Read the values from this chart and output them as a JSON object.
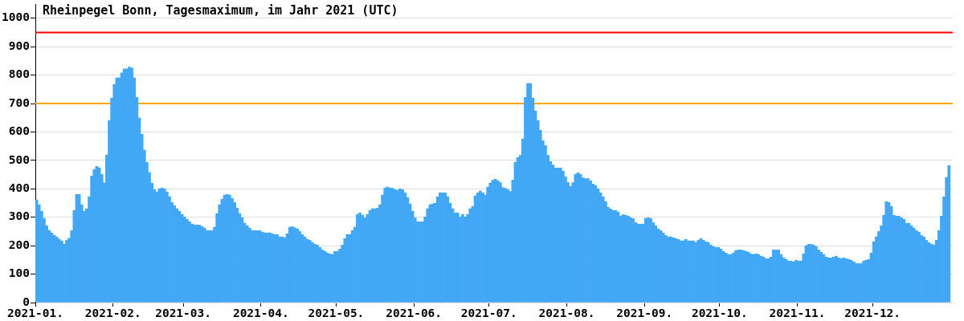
{
  "chart_data": {
    "type": "bar",
    "title": "Rheinpegel Bonn, Tagesmaximum, im Jahr 2021 (UTC)",
    "x": [
      "2021-01-01",
      "2021-01-02",
      "2021-01-03",
      "2021-01-04",
      "2021-01-05",
      "2021-01-06",
      "2021-01-07",
      "2021-01-08",
      "2021-01-09",
      "2021-01-10",
      "2021-01-11",
      "2021-01-12",
      "2021-01-13",
      "2021-01-14",
      "2021-01-15",
      "2021-01-16",
      "2021-01-17",
      "2021-01-18",
      "2021-01-19",
      "2021-01-20",
      "2021-01-21",
      "2021-01-22",
      "2021-01-23",
      "2021-01-24",
      "2021-01-25",
      "2021-01-26",
      "2021-01-27",
      "2021-01-28",
      "2021-01-29",
      "2021-01-30",
      "2021-01-31",
      "2021-02-01",
      "2021-02-02",
      "2021-02-03",
      "2021-02-04",
      "2021-02-05",
      "2021-02-06",
      "2021-02-07",
      "2021-02-08",
      "2021-02-09",
      "2021-02-10",
      "2021-02-11",
      "2021-02-12",
      "2021-02-13",
      "2021-02-14",
      "2021-02-15",
      "2021-02-16",
      "2021-02-17",
      "2021-02-18",
      "2021-02-19",
      "2021-02-20",
      "2021-02-21",
      "2021-02-22",
      "2021-02-23",
      "2021-02-24",
      "2021-02-25",
      "2021-02-26",
      "2021-02-27",
      "2021-02-28",
      "2021-03-01",
      "2021-03-02",
      "2021-03-03",
      "2021-03-04",
      "2021-03-05",
      "2021-03-06",
      "2021-03-07",
      "2021-03-08",
      "2021-03-09",
      "2021-03-10",
      "2021-03-11",
      "2021-03-12",
      "2021-03-13",
      "2021-03-14",
      "2021-03-15",
      "2021-03-16",
      "2021-03-17",
      "2021-03-18",
      "2021-03-19",
      "2021-03-20",
      "2021-03-21",
      "2021-03-22",
      "2021-03-23",
      "2021-03-24",
      "2021-03-25",
      "2021-03-26",
      "2021-03-27",
      "2021-03-28",
      "2021-03-29",
      "2021-03-30",
      "2021-03-31",
      "2021-04-01",
      "2021-04-02",
      "2021-04-03",
      "2021-04-04",
      "2021-04-05",
      "2021-04-06",
      "2021-04-07",
      "2021-04-08",
      "2021-04-09",
      "2021-04-10",
      "2021-04-11",
      "2021-04-12",
      "2021-04-13",
      "2021-04-14",
      "2021-04-15",
      "2021-04-16",
      "2021-04-17",
      "2021-04-18",
      "2021-04-19",
      "2021-04-20",
      "2021-04-21",
      "2021-04-22",
      "2021-04-23",
      "2021-04-24",
      "2021-04-25",
      "2021-04-26",
      "2021-04-27",
      "2021-04-28",
      "2021-04-29",
      "2021-04-30",
      "2021-05-01",
      "2021-05-02",
      "2021-05-03",
      "2021-05-04",
      "2021-05-05",
      "2021-05-06",
      "2021-05-07",
      "2021-05-08",
      "2021-05-09",
      "2021-05-10",
      "2021-05-11",
      "2021-05-12",
      "2021-05-13",
      "2021-05-14",
      "2021-05-15",
      "2021-05-16",
      "2021-05-17",
      "2021-05-18",
      "2021-05-19",
      "2021-05-20",
      "2021-05-21",
      "2021-05-22",
      "2021-05-23",
      "2021-05-24",
      "2021-05-25",
      "2021-05-26",
      "2021-05-27",
      "2021-05-28",
      "2021-05-29",
      "2021-05-30",
      "2021-05-31",
      "2021-06-01",
      "2021-06-02",
      "2021-06-03",
      "2021-06-04",
      "2021-06-05",
      "2021-06-06",
      "2021-06-07",
      "2021-06-08",
      "2021-06-09",
      "2021-06-10",
      "2021-06-11",
      "2021-06-12",
      "2021-06-13",
      "2021-06-14",
      "2021-06-15",
      "2021-06-16",
      "2021-06-17",
      "2021-06-18",
      "2021-06-19",
      "2021-06-20",
      "2021-06-21",
      "2021-06-22",
      "2021-06-23",
      "2021-06-24",
      "2021-06-25",
      "2021-06-26",
      "2021-06-27",
      "2021-06-28",
      "2021-06-29",
      "2021-06-30",
      "2021-07-01",
      "2021-07-02",
      "2021-07-03",
      "2021-07-04",
      "2021-07-05",
      "2021-07-06",
      "2021-07-07",
      "2021-07-08",
      "2021-07-09",
      "2021-07-10",
      "2021-07-11",
      "2021-07-12",
      "2021-07-13",
      "2021-07-14",
      "2021-07-15",
      "2021-07-16",
      "2021-07-17",
      "2021-07-18",
      "2021-07-19",
      "2021-07-20",
      "2021-07-21",
      "2021-07-22",
      "2021-07-23",
      "2021-07-24",
      "2021-07-25",
      "2021-07-26",
      "2021-07-27",
      "2021-07-28",
      "2021-07-29",
      "2021-07-30",
      "2021-07-31",
      "2021-08-01",
      "2021-08-02",
      "2021-08-03",
      "2021-08-04",
      "2021-08-05",
      "2021-08-06",
      "2021-08-07",
      "2021-08-08",
      "2021-08-09",
      "2021-08-10",
      "2021-08-11",
      "2021-08-12",
      "2021-08-13",
      "2021-08-14",
      "2021-08-15",
      "2021-08-16",
      "2021-08-17",
      "2021-08-18",
      "2021-08-19",
      "2021-08-20",
      "2021-08-21",
      "2021-08-22",
      "2021-08-23",
      "2021-08-24",
      "2021-08-25",
      "2021-08-26",
      "2021-08-27",
      "2021-08-28",
      "2021-08-29",
      "2021-08-30",
      "2021-08-31",
      "2021-09-01",
      "2021-09-02",
      "2021-09-03",
      "2021-09-04",
      "2021-09-05",
      "2021-09-06",
      "2021-09-07",
      "2021-09-08",
      "2021-09-09",
      "2021-09-10",
      "2021-09-11",
      "2021-09-12",
      "2021-09-13",
      "2021-09-14",
      "2021-09-15",
      "2021-09-16",
      "2021-09-17",
      "2021-09-18",
      "2021-09-19",
      "2021-09-20",
      "2021-09-21",
      "2021-09-22",
      "2021-09-23",
      "2021-09-24",
      "2021-09-25",
      "2021-09-26",
      "2021-09-27",
      "2021-09-28",
      "2021-09-29",
      "2021-09-30",
      "2021-10-01",
      "2021-10-02",
      "2021-10-03",
      "2021-10-04",
      "2021-10-05",
      "2021-10-06",
      "2021-10-07",
      "2021-10-08",
      "2021-10-09",
      "2021-10-10",
      "2021-10-11",
      "2021-10-12",
      "2021-10-13",
      "2021-10-14",
      "2021-10-15",
      "2021-10-16",
      "2021-10-17",
      "2021-10-18",
      "2021-10-19",
      "2021-10-20",
      "2021-10-21",
      "2021-10-22",
      "2021-10-23",
      "2021-10-24",
      "2021-10-25",
      "2021-10-26",
      "2021-10-27",
      "2021-10-28",
      "2021-10-29",
      "2021-10-30",
      "2021-10-31",
      "2021-11-01",
      "2021-11-02",
      "2021-11-03",
      "2021-11-04",
      "2021-11-05",
      "2021-11-06",
      "2021-11-07",
      "2021-11-08",
      "2021-11-09",
      "2021-11-10",
      "2021-11-11",
      "2021-11-12",
      "2021-11-13",
      "2021-11-14",
      "2021-11-15",
      "2021-11-16",
      "2021-11-17",
      "2021-11-18",
      "2021-11-19",
      "2021-11-20",
      "2021-11-21",
      "2021-11-22",
      "2021-11-23",
      "2021-11-24",
      "2021-11-25",
      "2021-11-26",
      "2021-11-27",
      "2021-11-28",
      "2021-11-29",
      "2021-11-30",
      "2021-12-01",
      "2021-12-02",
      "2021-12-03",
      "2021-12-04",
      "2021-12-05",
      "2021-12-06",
      "2021-12-07",
      "2021-12-08",
      "2021-12-09",
      "2021-12-10",
      "2021-12-11",
      "2021-12-12",
      "2021-12-13",
      "2021-12-14",
      "2021-12-15",
      "2021-12-16",
      "2021-12-17",
      "2021-12-18",
      "2021-12-19",
      "2021-12-20",
      "2021-12-21",
      "2021-12-22",
      "2021-12-23",
      "2021-12-24",
      "2021-12-25",
      "2021-12-26",
      "2021-12-27",
      "2021-12-28",
      "2021-12-29",
      "2021-12-30",
      "2021-12-31"
    ],
    "values": [
      361,
      344,
      321,
      296,
      270,
      254,
      245,
      237,
      231,
      223,
      217,
      206,
      219,
      226,
      253,
      324,
      380,
      380,
      344,
      321,
      330,
      372,
      445,
      468,
      479,
      474,
      451,
      421,
      519,
      640,
      719,
      767,
      790,
      790,
      808,
      822,
      822,
      828,
      825,
      790,
      722,
      649,
      592,
      536,
      493,
      457,
      420,
      397,
      389,
      400,
      403,
      400,
      389,
      372,
      352,
      341,
      330,
      321,
      310,
      301,
      293,
      284,
      276,
      273,
      273,
      273,
      267,
      262,
      253,
      253,
      253,
      265,
      313,
      344,
      363,
      378,
      380,
      378,
      366,
      352,
      332,
      313,
      298,
      279,
      270,
      262,
      253,
      253,
      253,
      253,
      248,
      245,
      245,
      245,
      242,
      239,
      239,
      231,
      231,
      228,
      242,
      265,
      267,
      263,
      259,
      250,
      239,
      231,
      222,
      219,
      211,
      205,
      202,
      194,
      185,
      180,
      174,
      171,
      169,
      180,
      180,
      188,
      202,
      225,
      239,
      239,
      253,
      265,
      310,
      315,
      307,
      298,
      310,
      324,
      330,
      330,
      332,
      344,
      378,
      403,
      406,
      403,
      402,
      397,
      395,
      400,
      397,
      386,
      369,
      347,
      321,
      298,
      284,
      284,
      284,
      301,
      330,
      344,
      347,
      349,
      372,
      386,
      386,
      386,
      372,
      349,
      330,
      315,
      315,
      301,
      310,
      301,
      310,
      330,
      338,
      375,
      386,
      392,
      386,
      378,
      406,
      420,
      430,
      434,
      429,
      422,
      404,
      402,
      397,
      391,
      431,
      493,
      510,
      518,
      575,
      722,
      770,
      770,
      719,
      674,
      640,
      606,
      569,
      552,
      518,
      496,
      484,
      473,
      473,
      473,
      462,
      442,
      422,
      408,
      422,
      451,
      456,
      451,
      439,
      436,
      436,
      428,
      417,
      411,
      400,
      386,
      372,
      355,
      335,
      329,
      324,
      324,
      318,
      304,
      309,
      307,
      304,
      298,
      295,
      281,
      276,
      276,
      276,
      296,
      298,
      296,
      281,
      270,
      259,
      253,
      245,
      236,
      231,
      231,
      228,
      225,
      222,
      217,
      217,
      222,
      217,
      217,
      217,
      211,
      219,
      225,
      219,
      214,
      211,
      202,
      197,
      194,
      194,
      188,
      180,
      174,
      169,
      169,
      174,
      183,
      185,
      185,
      183,
      180,
      177,
      171,
      169,
      171,
      169,
      163,
      160,
      154,
      154,
      160,
      185,
      185,
      185,
      169,
      157,
      152,
      146,
      146,
      143,
      149,
      146,
      146,
      171,
      200,
      205,
      205,
      202,
      197,
      185,
      177,
      169,
      160,
      157,
      157,
      160,
      163,
      157,
      154,
      157,
      154,
      152,
      149,
      143,
      137,
      137,
      137,
      146,
      149,
      152,
      174,
      214,
      231,
      250,
      270,
      307,
      355,
      352,
      338,
      307,
      304,
      304,
      298,
      293,
      279,
      279,
      270,
      262,
      253,
      248,
      236,
      231,
      219,
      211,
      205,
      202,
      219,
      253,
      304,
      372,
      440,
      482
    ],
    "color": "#42a7f5",
    "xlim": [
      "2021-01-01",
      "2022-01-02"
    ],
    "xticks": [
      {
        "value": "2021-01-01",
        "label": "2021-01."
      },
      {
        "value": "2021-02-01",
        "label": "2021-02."
      },
      {
        "value": "2021-03-01",
        "label": "2021-03."
      },
      {
        "value": "2021-04-01",
        "label": "2021-04."
      },
      {
        "value": "2021-05-01",
        "label": "2021-05."
      },
      {
        "value": "2021-06-01",
        "label": "2021-06."
      },
      {
        "value": "2021-07-01",
        "label": "2021-07."
      },
      {
        "value": "2021-08-01",
        "label": "2021-08."
      },
      {
        "value": "2021-09-01",
        "label": "2021-09."
      },
      {
        "value": "2021-10-01",
        "label": "2021-10."
      },
      {
        "value": "2021-11-01",
        "label": "2021-11."
      },
      {
        "value": "2021-12-01",
        "label": "2021-12."
      }
    ],
    "ylim": [
      0,
      1050
    ],
    "yticks": [
      0,
      100,
      200,
      300,
      400,
      500,
      600,
      700,
      800,
      900,
      1000
    ],
    "grid": "y",
    "ref_lines": [
      {
        "axis": "y",
        "value": 950,
        "color": "#ff0000"
      },
      {
        "axis": "y",
        "value": 700,
        "color": "#ffa500"
      }
    ]
  }
}
